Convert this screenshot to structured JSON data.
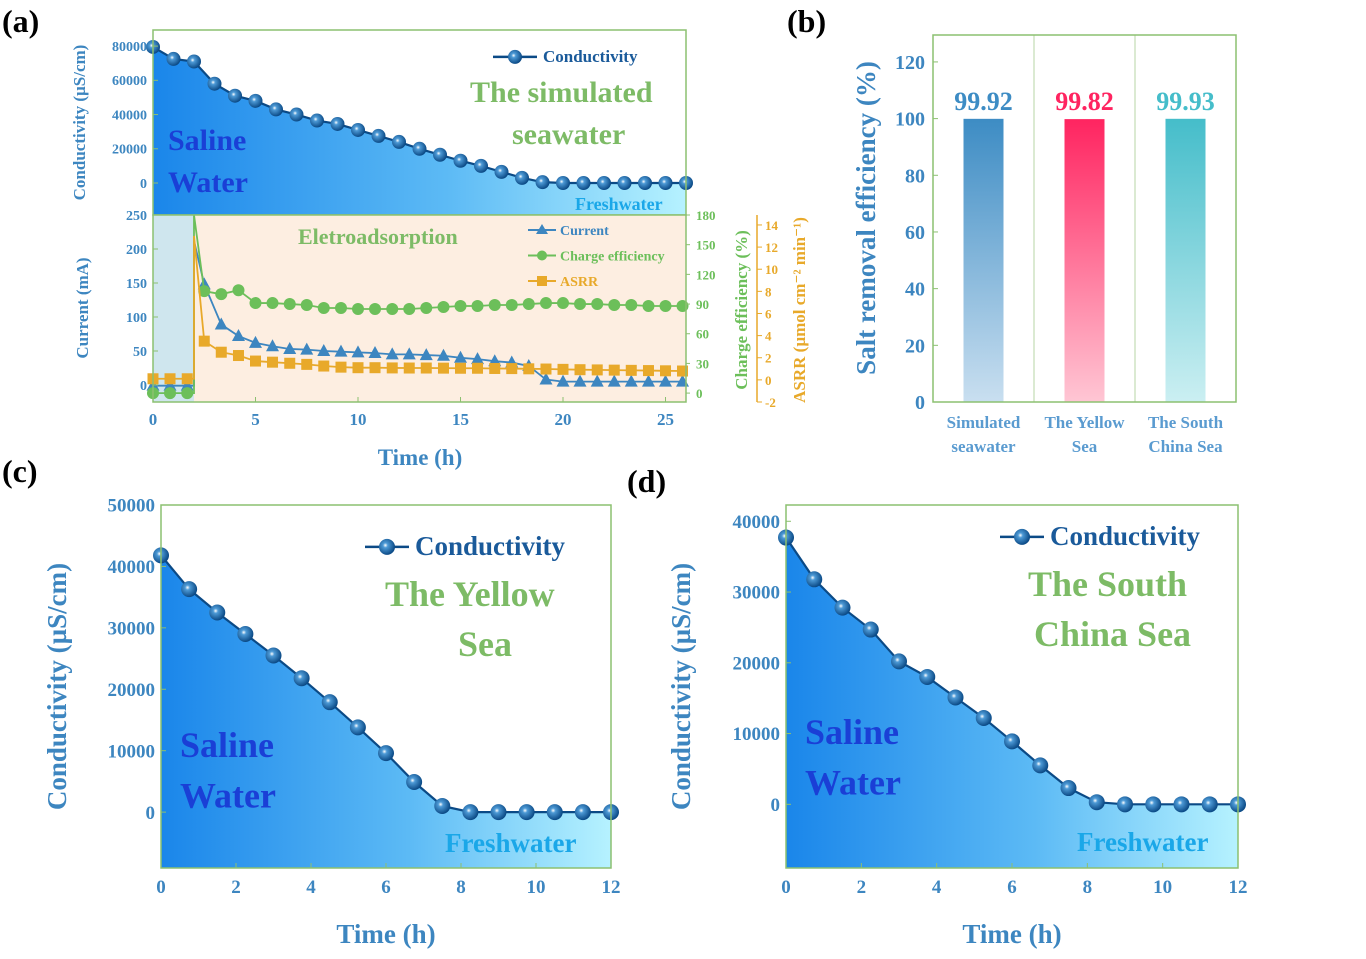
{
  "panel_labels": {
    "a": "(a)",
    "b": "(b)",
    "c": "(c)",
    "d": "(d)"
  },
  "chart_data": [
    {
      "id": "a_top",
      "type": "area",
      "ylabel": "Conductivity (µS/cm)",
      "xlim": [
        0,
        26
      ],
      "ylim": [
        -18700,
        89400
      ],
      "yticks": [
        0,
        20000,
        40000,
        60000,
        80000
      ],
      "legend": "Conductivity",
      "title_lines": [
        "The simulated",
        "seawater"
      ],
      "annotations": {
        "saline": "Saline",
        "water": "Water",
        "fresh": "Freshwater"
      },
      "series": [
        {
          "name": "Conductivity",
          "x": [
            0,
            1,
            2,
            3,
            4,
            5,
            6,
            7,
            8,
            9,
            10,
            11,
            12,
            13,
            14,
            15,
            16,
            17,
            18,
            19,
            20,
            21,
            22,
            23,
            24,
            25,
            26
          ],
          "y": [
            79500,
            72500,
            71000,
            58000,
            51000,
            48000,
            43000,
            40000,
            36500,
            34500,
            31000,
            27500,
            24000,
            20000,
            16500,
            13000,
            10000,
            6500,
            3000,
            500,
            0,
            0,
            0,
            0,
            0,
            0,
            0
          ]
        }
      ]
    },
    {
      "id": "a_bottom",
      "type": "line",
      "xlabel": "Time (h)",
      "xlim": [
        0,
        26
      ],
      "xticks": [
        0,
        5,
        10,
        15,
        20,
        25
      ],
      "annotation": "Eletroadsorption",
      "axes": {
        "current": {
          "label": "Current (mA)",
          "ylim": [
            -25,
            250
          ],
          "ticks": [
            0,
            50,
            100,
            150,
            200,
            250
          ]
        },
        "charge_efficiency": {
          "label": "Charge efficiency (%)",
          "ylim": [
            -9,
            180
          ],
          "ticks": [
            0,
            30,
            60,
            90,
            120,
            150,
            180
          ]
        },
        "asrr": {
          "label": "ASRR (µmol cm⁻² min⁻¹)",
          "ylim": [
            -2,
            14.9
          ],
          "ticks": [
            -2,
            0,
            2,
            4,
            6,
            8,
            10,
            12,
            14
          ]
        }
      },
      "regions": [
        {
          "from": 0,
          "to": 2,
          "color": "#cfe6ee"
        },
        {
          "from": 2,
          "to": 26,
          "color": "#fdeee1"
        }
      ],
      "series": [
        {
          "name": "Current",
          "axis": "current",
          "color": "#3d86c0",
          "marker": "triangle",
          "x": [
            0,
            0.83,
            1.67,
            2.5,
            3.33,
            4.17,
            5,
            5.83,
            6.67,
            7.5,
            8.33,
            9.17,
            10,
            10.83,
            11.67,
            12.5,
            13.33,
            14.17,
            15,
            15.83,
            16.67,
            17.5,
            18.33,
            19.17,
            20,
            20.83,
            21.67,
            22.5,
            23.33,
            24.17,
            25,
            25.83
          ],
          "y": [
            -1,
            -1,
            -1,
            148,
            89,
            72,
            62,
            57,
            53,
            52,
            50,
            49,
            48,
            47,
            45,
            45,
            44,
            43,
            40,
            38,
            35,
            33,
            28,
            8,
            5,
            5,
            5,
            5,
            5,
            5,
            5,
            5
          ],
          "spike": [
            [
              2,
              -1
            ],
            [
              2,
              212
            ]
          ]
        },
        {
          "name": "Charge efficiency",
          "axis": "charge_efficiency",
          "color": "#6cbf5a",
          "marker": "circle",
          "x": [
            0,
            0.83,
            1.67,
            2.5,
            3.33,
            4.17,
            5,
            5.83,
            6.67,
            7.5,
            8.33,
            9.17,
            10,
            10.83,
            11.67,
            12.5,
            13.33,
            14.17,
            15,
            15.83,
            16.67,
            17.5,
            18.33,
            19.17,
            20,
            20.83,
            21.67,
            22.5,
            23.33,
            24.17,
            25,
            25.83
          ],
          "y": [
            0,
            0,
            0,
            103,
            100,
            104,
            91,
            91,
            90,
            89,
            86,
            86,
            85,
            85,
            85,
            85,
            86,
            87,
            88,
            88,
            89,
            89,
            90,
            91,
            91,
            90,
            90,
            89,
            89,
            88,
            88,
            88
          ],
          "spike": [
            [
              2,
              0
            ],
            [
              2,
              180
            ]
          ]
        },
        {
          "name": "ASRR",
          "axis": "asrr",
          "color": "#e8a92a",
          "marker": "square",
          "x": [
            0,
            0.83,
            1.67,
            2.5,
            3.33,
            4.17,
            5,
            5.83,
            6.67,
            7.5,
            8.33,
            9.17,
            10,
            10.83,
            11.67,
            12.5,
            13.33,
            14.17,
            15,
            15.83,
            16.67,
            17.5,
            18.33,
            19.17,
            20,
            20.83,
            21.67,
            22.5,
            23.33,
            24.17,
            25,
            25.83
          ],
          "y": [
            0.1,
            0.1,
            0.1,
            3.5,
            2.5,
            2.2,
            1.7,
            1.6,
            1.5,
            1.4,
            1.25,
            1.15,
            1.1,
            1.1,
            1.08,
            1.07,
            1.07,
            1.06,
            1.05,
            1.05,
            1.03,
            1.02,
            1.0,
            0.98,
            0.95,
            0.92,
            0.9,
            0.88,
            0.86,
            0.84,
            0.82,
            0.8
          ],
          "spike": [
            [
              2,
              0.1
            ],
            [
              2,
              13
            ]
          ]
        }
      ]
    },
    {
      "id": "b",
      "type": "bar",
      "ylabel": "Salt removal efficiency (%)",
      "ylim": [
        0,
        129.5
      ],
      "yticks": [
        0,
        20,
        40,
        60,
        80,
        100,
        120
      ],
      "categories": [
        [
          "Simulated",
          "seawater"
        ],
        [
          "The Yellow",
          "Sea"
        ],
        [
          "The South",
          "China Sea"
        ]
      ],
      "values": [
        99.92,
        99.82,
        99.93
      ],
      "value_labels": [
        "99.92",
        "99.82",
        "99.93"
      ],
      "colors": [
        [
          "#3d8cc4",
          "#c9dff0"
        ],
        [
          "#ff2460",
          "#ffc6d4"
        ],
        [
          "#45bdca",
          "#cbeff2"
        ]
      ]
    },
    {
      "id": "c",
      "type": "area",
      "xlabel": "Time (h)",
      "ylabel": "Conductivity (µS/cm)",
      "xlim": [
        0,
        12
      ],
      "ylim": [
        -9100,
        50000
      ],
      "xticks": [
        0,
        2,
        4,
        6,
        8,
        10,
        12
      ],
      "yticks": [
        0,
        10000,
        20000,
        30000,
        40000,
        50000
      ],
      "legend": "Conductivity",
      "title_lines": [
        "The Yellow",
        "Sea"
      ],
      "annotations": {
        "saline": "Saline",
        "water": "Water",
        "fresh": "Freshwater"
      },
      "series": [
        {
          "name": "Conductivity",
          "x": [
            0,
            0.75,
            1.5,
            2.25,
            3,
            3.75,
            4.5,
            5.25,
            6,
            6.75,
            7.5,
            8.25,
            9,
            9.75,
            10.5,
            11.25,
            12
          ],
          "y": [
            41800,
            36300,
            32500,
            29000,
            25500,
            21800,
            17900,
            13800,
            9600,
            4900,
            1000,
            0,
            0,
            0,
            0,
            0,
            0
          ]
        }
      ]
    },
    {
      "id": "d",
      "type": "area",
      "xlabel": "Time (h)",
      "ylabel": "Conductivity (µS/cm)",
      "xlim": [
        0,
        12
      ],
      "ylim": [
        -9000,
        42300
      ],
      "xticks": [
        0,
        2,
        4,
        6,
        8,
        10,
        12
      ],
      "yticks": [
        0,
        10000,
        20000,
        30000,
        40000
      ],
      "legend": "Conductivity",
      "title_lines": [
        "The South",
        "China Sea"
      ],
      "annotations": {
        "saline": "Saline",
        "water": "Water",
        "fresh": "Freshwater"
      },
      "series": [
        {
          "name": "Conductivity",
          "x": [
            0,
            0.75,
            1.5,
            2.25,
            3,
            3.75,
            4.5,
            5.25,
            6,
            6.75,
            7.5,
            8.25,
            9,
            9.75,
            10.5,
            11.25,
            12
          ],
          "y": [
            37700,
            31800,
            27800,
            24700,
            20200,
            18000,
            15100,
            12200,
            8900,
            5500,
            2300,
            300,
            0,
            0,
            0,
            0,
            0
          ]
        }
      ]
    }
  ]
}
